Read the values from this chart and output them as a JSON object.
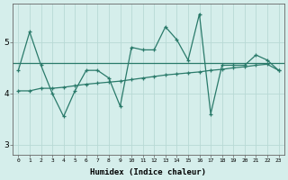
{
  "x": [
    0,
    1,
    2,
    3,
    4,
    5,
    6,
    7,
    8,
    9,
    10,
    11,
    12,
    13,
    14,
    15,
    16,
    17,
    18,
    19,
    20,
    21,
    22,
    23
  ],
  "line1": [
    4.45,
    5.2,
    4.55,
    4.0,
    3.55,
    4.05,
    4.45,
    4.45,
    4.3,
    3.75,
    4.9,
    4.85,
    4.85,
    5.3,
    5.05,
    4.65,
    5.55,
    3.6,
    4.55,
    4.55,
    4.55,
    4.75,
    4.65,
    4.45
  ],
  "line2_x": [
    0,
    1,
    2,
    3,
    4,
    5,
    6,
    7,
    8,
    9,
    10,
    11,
    12,
    13,
    14,
    15,
    16,
    17,
    18,
    19,
    20,
    21,
    22,
    23
  ],
  "line2": [
    4.05,
    4.05,
    4.1,
    4.1,
    4.12,
    4.15,
    4.18,
    4.2,
    4.22,
    4.24,
    4.27,
    4.3,
    4.33,
    4.36,
    4.38,
    4.4,
    4.42,
    4.45,
    4.47,
    4.5,
    4.52,
    4.55,
    4.57,
    4.45
  ],
  "hline_y": 4.6,
  "color": "#2a7a6a",
  "bg_color": "#d5eeeb",
  "grid_color": "#b8d9d5",
  "xlabel": "Humidex (Indice chaleur)",
  "ylim": [
    2.8,
    5.75
  ],
  "xlim": [
    -0.5,
    23.5
  ],
  "yticks": [
    3,
    4,
    5
  ],
  "xticks": [
    0,
    1,
    2,
    3,
    4,
    5,
    6,
    7,
    8,
    9,
    10,
    11,
    12,
    13,
    14,
    15,
    16,
    17,
    18,
    19,
    20,
    21,
    22,
    23
  ],
  "xtick_labels": [
    "0",
    "1",
    "2",
    "3",
    "4",
    "5",
    "6",
    "7",
    "8",
    "9",
    "10",
    "11",
    "12",
    "13",
    "14",
    "15",
    "16",
    "17",
    "18",
    "19",
    "20",
    "21",
    "22",
    "23"
  ]
}
